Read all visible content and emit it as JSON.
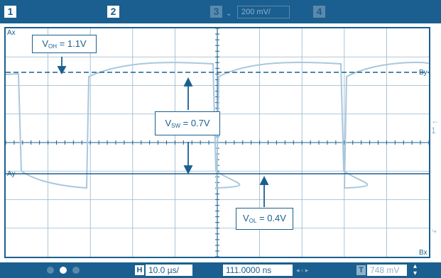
{
  "colors": {
    "bar": "#1a5f8f",
    "grid": "#1a5f8f",
    "trace": "#a9c7dd",
    "cursor": "#1a5f8f",
    "annotation": "#1a5f8f"
  },
  "top_bar": {
    "ch1": "1",
    "ch2": "2",
    "ch3": "3",
    "ch3_chevron": "⌄",
    "scale": "200 mV/",
    "ch4": "4"
  },
  "labels": {
    "ax": "Ax",
    "ay": "Ay",
    "by": "By",
    "bx": "Bx",
    "trigger_marker": "← 1",
    "side_icon": "⤷"
  },
  "annotations": {
    "voh": {
      "v": "V",
      "sub": "OH",
      "rest": " = 1.1V"
    },
    "vsw": {
      "v": "V",
      "sub": "SW",
      "rest": " = 0.7V"
    },
    "vol": {
      "v": "V",
      "sub": "OL",
      "rest": " = 0.4V"
    }
  },
  "bottom_bar": {
    "h_icon": "H",
    "timebase": "10.0 µs/",
    "delay": "111.0000 ns",
    "nav": "◂ ▫ ▸",
    "trigger_icon": "T",
    "trigger_level": "748 mV",
    "updown": "▴ ▾"
  },
  "waveform": {
    "high_level_v": 1.1,
    "low_level_v": 0.4,
    "swing_v": 0.7,
    "volts_per_div": 0.2,
    "time_per_div_us": 10
  }
}
